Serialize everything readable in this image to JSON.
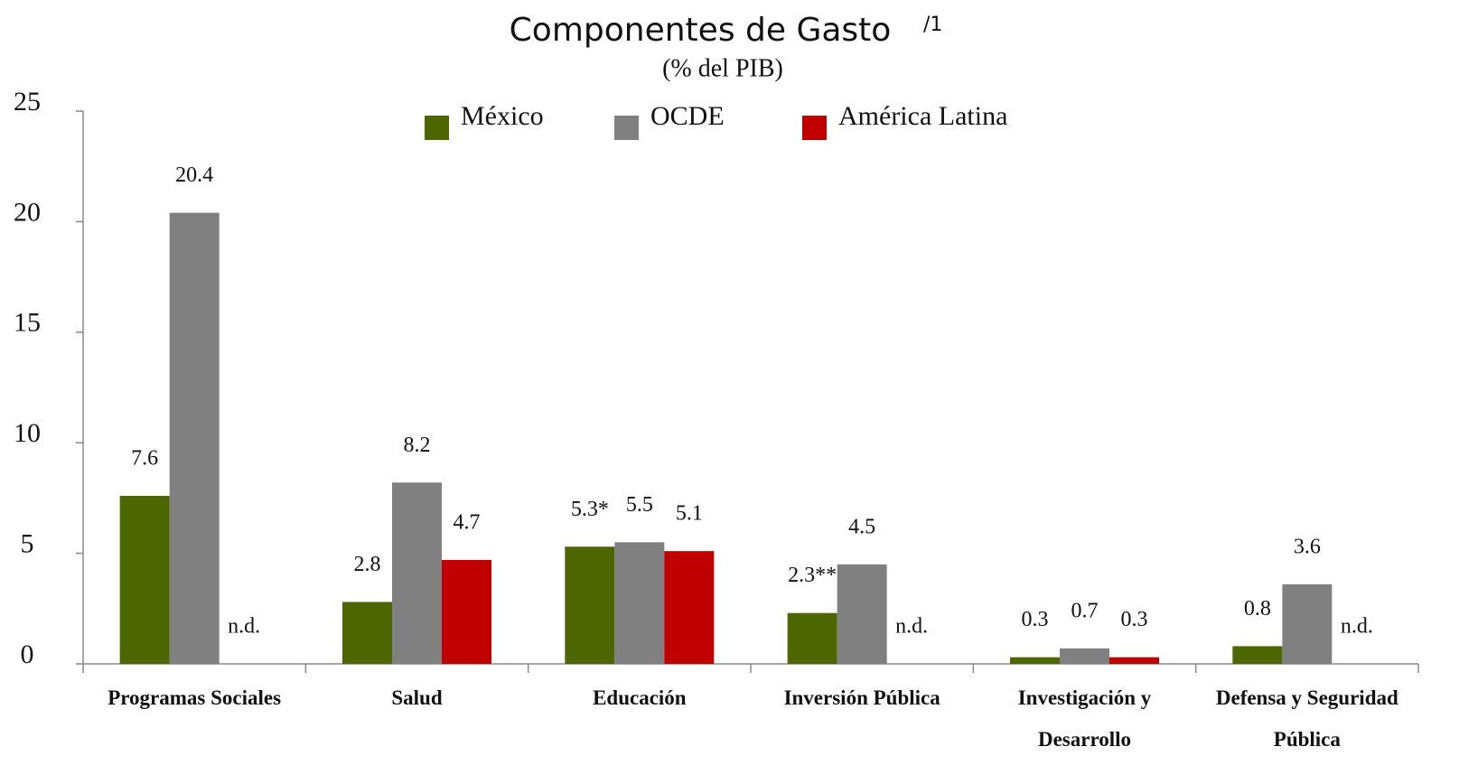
{
  "chart_data": {
    "type": "bar",
    "title": "Componentes de Gasto",
    "title_note": "/1",
    "subtitle": "(% del PIB)",
    "categories": [
      "Programas Sociales",
      "Salud",
      "Educación",
      "Inversión Pública",
      "Investigación y Desarrollo",
      "Defensa y Seguridad Pública"
    ],
    "series": [
      {
        "name": "México",
        "color": "#4d6600",
        "values": [
          7.6,
          2.8,
          5.3,
          2.3,
          0.3,
          0.8
        ],
        "value_labels": [
          "7.6",
          "2.8",
          "5.3*",
          "2.3**",
          "0.3",
          "0.8"
        ]
      },
      {
        "name": "OCDE",
        "color": "#808080",
        "values": [
          20.4,
          8.2,
          5.5,
          4.5,
          0.7,
          3.6
        ]
      },
      {
        "name": "América Latina",
        "color": "#c00000",
        "values": [
          null,
          4.7,
          5.1,
          null,
          0.3,
          null
        ],
        "value_labels": [
          "n.d.",
          "4.7",
          "5.1",
          "n.d.",
          "0.3",
          "n.d."
        ]
      }
    ],
    "ylim": [
      0,
      25
    ],
    "yticks": [
      0,
      5,
      10,
      15,
      20,
      25
    ],
    "grid": false,
    "legend": "top"
  }
}
